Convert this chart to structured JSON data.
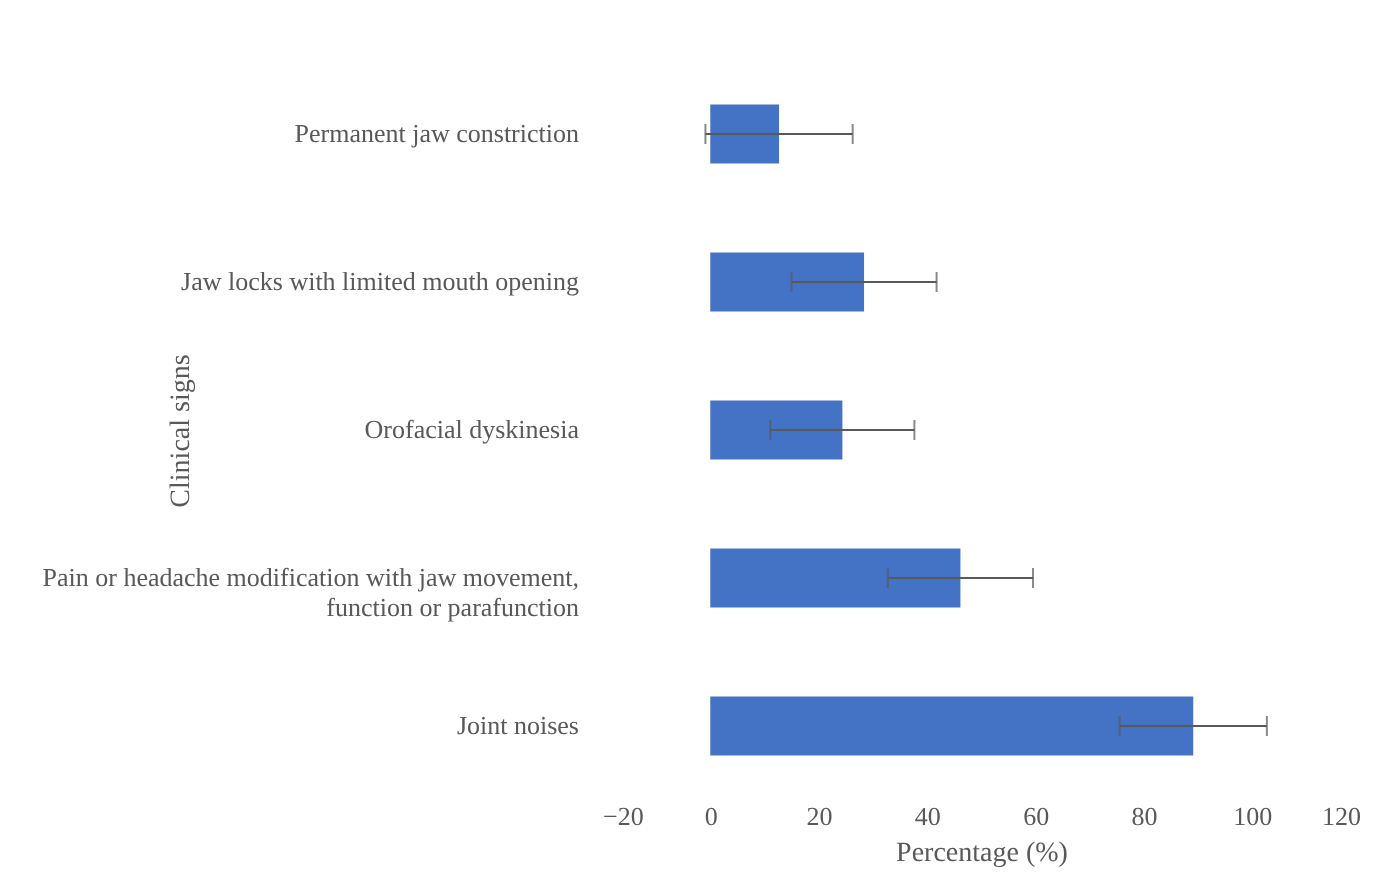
{
  "chart_data": {
    "type": "bar",
    "orientation": "horizontal",
    "xlabel": "Percentage  (%)",
    "ylabel": "Clinical  signs",
    "categories": [
      "Permanent jaw constriction",
      "Jaw locks with limited mouth opening",
      "Orofacial dyskinesia",
      "Pain or headache modification with jaw movement, function or parafunction",
      "Joint noises"
    ],
    "values": [
      12.7,
      28.4,
      24.4,
      46.2,
      89.2
    ],
    "errors": [
      13.6,
      13.4,
      13.3,
      13.4,
      13.6
    ],
    "color": "#4472c4",
    "xlim": [
      -20,
      120
    ],
    "xticks": [
      -20,
      0,
      20,
      40,
      60,
      80,
      100,
      120
    ],
    "grid": false
  }
}
